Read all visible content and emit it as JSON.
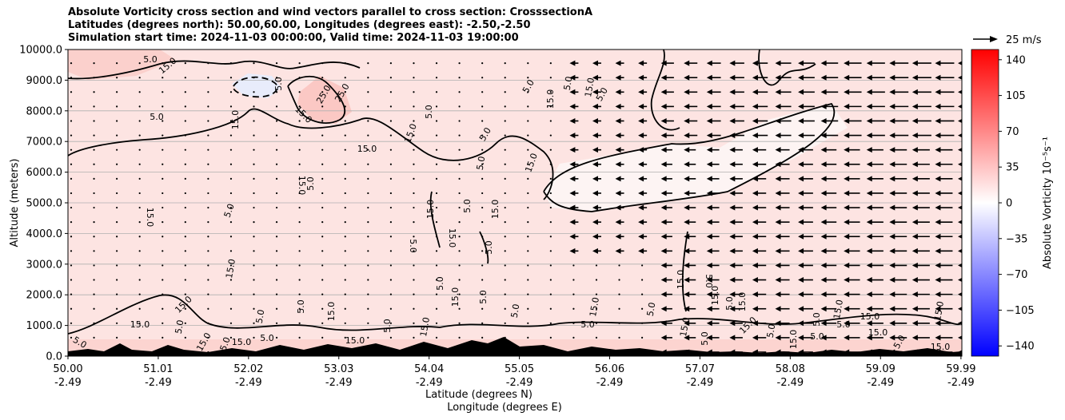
{
  "chart_data": {
    "type": "heatmap",
    "title_lines": [
      "Absolute Vorticity cross section and wind vectors parallel to cross section: CrosssectionA",
      "Latitudes (degrees north): 50.00,60.00, Longitudes (degrees east): -2.50,-2.50",
      "Simulation start time: 2024-11-03 00:00:00, Valid time: 2024-11-03 19:00:00"
    ],
    "ylabel": "Altitude (meters)",
    "xlabel_lines": [
      "Latitude (degrees N)",
      "Longitude (degrees E)"
    ],
    "ylim": [
      0,
      10000
    ],
    "y_ticks": [
      "0.0",
      "1000.0",
      "2000.0",
      "3000.0",
      "4000.0",
      "5000.0",
      "6000.0",
      "7000.0",
      "8000.0",
      "9000.0",
      "10000.0"
    ],
    "x_ticks": [
      {
        "lat": "50.00",
        "lon": "-2.49"
      },
      {
        "lat": "51.01",
        "lon": "-2.49"
      },
      {
        "lat": "52.02",
        "lon": "-2.49"
      },
      {
        "lat": "53.03",
        "lon": "-2.49"
      },
      {
        "lat": "54.04",
        "lon": "-2.49"
      },
      {
        "lat": "55.05",
        "lon": "-2.49"
      },
      {
        "lat": "56.06",
        "lon": "-2.49"
      },
      {
        "lat": "57.07",
        "lon": "-2.49"
      },
      {
        "lat": "58.08",
        "lon": "-2.49"
      },
      {
        "lat": "59.09",
        "lon": "-2.49"
      },
      {
        "lat": "59.99",
        "lon": "-2.49"
      }
    ],
    "xlim": [
      50.0,
      60.0
    ],
    "grid_horizontal": true,
    "colorbar": {
      "label": "Absolute Vorticity 10⁻⁵s⁻¹",
      "range": [
        -150,
        150
      ],
      "ticks": [
        "140",
        "105",
        "70",
        "35",
        "0",
        "−35",
        "−70",
        "−105",
        "−140"
      ],
      "colors": {
        "neg": "#0000ff",
        "mid": "#ffffff",
        "pos": "#ff0000"
      }
    },
    "quiver_key": "25 m/s",
    "contour_labels": [
      "5.0",
      "15.0",
      "25.0"
    ],
    "background_vorticity": 10
  }
}
